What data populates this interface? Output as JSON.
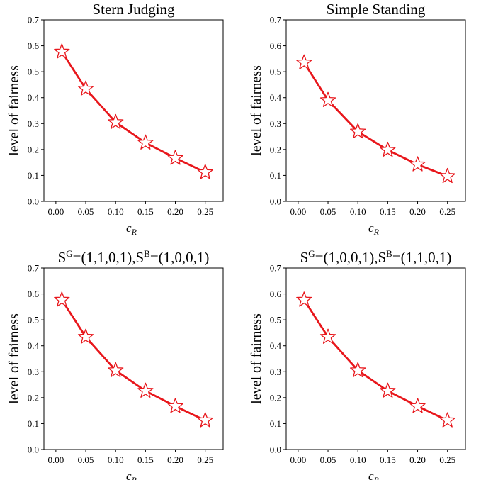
{
  "style": {
    "accent": "#e8161b"
  },
  "chart_data": [
    {
      "type": "line",
      "title": "Stern Judging",
      "xlabel": "c",
      "xlabel_sub": "R",
      "ylabel": "level of fairness",
      "x": [
        0.01,
        0.05,
        0.1,
        0.15,
        0.2,
        0.25
      ],
      "y": [
        0.577,
        0.434,
        0.305,
        0.226,
        0.167,
        0.112
      ],
      "xlim": [
        -0.02,
        0.28
      ],
      "ylim": [
        0.0,
        0.7
      ],
      "xticks": [
        "0.00",
        "0.05",
        "0.10",
        "0.15",
        "0.20",
        "0.25"
      ],
      "yticks": [
        "0.0",
        "0.1",
        "0.2",
        "0.3",
        "0.4",
        "0.5",
        "0.6",
        "0.7"
      ],
      "marker": "star",
      "color": "#e8161b"
    },
    {
      "type": "line",
      "title": "Simple Standing",
      "xlabel": "c",
      "xlabel_sub": "R",
      "ylabel": "level of fairness",
      "x": [
        0.01,
        0.05,
        0.1,
        0.15,
        0.2,
        0.25
      ],
      "y": [
        0.535,
        0.39,
        0.269,
        0.198,
        0.142,
        0.097
      ],
      "xlim": [
        -0.02,
        0.28
      ],
      "ylim": [
        0.0,
        0.7
      ],
      "xticks": [
        "0.00",
        "0.05",
        "0.10",
        "0.15",
        "0.20",
        "0.25"
      ],
      "yticks": [
        "0.0",
        "0.1",
        "0.2",
        "0.3",
        "0.4",
        "0.5",
        "0.6",
        "0.7"
      ],
      "marker": "star",
      "color": "#e8161b"
    },
    {
      "type": "line",
      "title_parts": [
        "S",
        "G",
        "=(1,1,0,1),S",
        "B",
        "=(1,0,0,1)"
      ],
      "xlabel": "c",
      "xlabel_sub": "R",
      "ylabel": "level of fairness",
      "x": [
        0.01,
        0.05,
        0.1,
        0.15,
        0.2,
        0.25
      ],
      "y": [
        0.577,
        0.434,
        0.305,
        0.226,
        0.167,
        0.112
      ],
      "xlim": [
        -0.02,
        0.28
      ],
      "ylim": [
        0.0,
        0.7
      ],
      "xticks": [
        "0.00",
        "0.05",
        "0.10",
        "0.15",
        "0.20",
        "0.25"
      ],
      "yticks": [
        "0.0",
        "0.1",
        "0.2",
        "0.3",
        "0.4",
        "0.5",
        "0.6",
        "0.7"
      ],
      "marker": "star",
      "color": "#e8161b"
    },
    {
      "type": "line",
      "title_parts": [
        "S",
        "G",
        "=(1,0,0,1),S",
        "B",
        "=(1,1,0,1)"
      ],
      "xlabel": "c",
      "xlabel_sub": "R",
      "ylabel": "level of fairness",
      "x": [
        0.01,
        0.05,
        0.1,
        0.15,
        0.2,
        0.25
      ],
      "y": [
        0.577,
        0.434,
        0.305,
        0.226,
        0.167,
        0.112
      ],
      "xlim": [
        -0.02,
        0.28
      ],
      "ylim": [
        0.0,
        0.7
      ],
      "xticks": [
        "0.00",
        "0.05",
        "0.10",
        "0.15",
        "0.20",
        "0.25"
      ],
      "yticks": [
        "0.0",
        "0.1",
        "0.2",
        "0.3",
        "0.4",
        "0.5",
        "0.6",
        "0.7"
      ],
      "marker": "star",
      "color": "#e8161b"
    }
  ]
}
